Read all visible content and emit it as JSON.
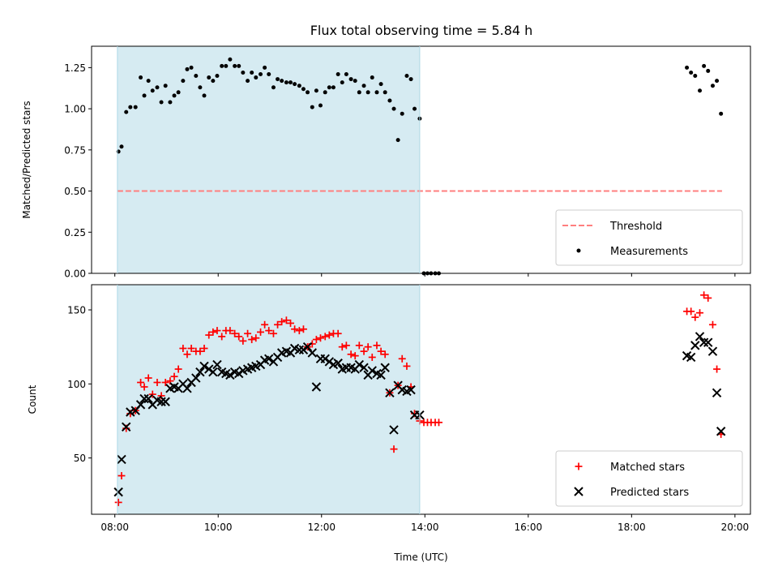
{
  "title": "Flux total observing time = 5.84 h",
  "colors": {
    "highlight": "#add8e6",
    "threshold": "#ff7f7f",
    "measurement": "#000000",
    "matched": "#ff0000",
    "predicted": "#000000"
  },
  "chart_data": [
    {
      "type": "scatter",
      "panel": "top",
      "xlabel": "",
      "ylabel": "Matched/Predicted stars",
      "xlim": [
        7.55,
        20.3
      ],
      "ylim": [
        0,
        1.38
      ],
      "x_ticks": [
        8,
        10,
        12,
        14,
        16,
        18,
        20
      ],
      "x_tick_labels": [
        "08:00",
        "10:00",
        "12:00",
        "14:00",
        "16:00",
        "18:00",
        "20:00"
      ],
      "x_tick_labels_visible": false,
      "y_ticks": [
        0,
        0.25,
        0.5,
        0.75,
        1.0,
        1.25
      ],
      "y_tick_labels": [
        "0.00",
        "0.25",
        "0.50",
        "0.75",
        "1.00",
        "1.25"
      ],
      "highlight_span": [
        8.05,
        13.9
      ],
      "threshold": {
        "name": "Threshold",
        "style": "dashed",
        "y": 0.5,
        "x_range": [
          8.05,
          19.75
        ]
      },
      "series": [
        {
          "name": "Measurements",
          "marker": "dot",
          "x": [
            8.07,
            8.13,
            8.22,
            8.3,
            8.4,
            8.5,
            8.57,
            8.65,
            8.73,
            8.82,
            8.9,
            8.98,
            9.07,
            9.15,
            9.23,
            9.32,
            9.4,
            9.48,
            9.57,
            9.65,
            9.73,
            9.82,
            9.9,
            9.98,
            10.07,
            10.15,
            10.23,
            10.32,
            10.4,
            10.48,
            10.57,
            10.65,
            10.73,
            10.82,
            10.9,
            10.98,
            11.07,
            11.15,
            11.23,
            11.32,
            11.4,
            11.48,
            11.57,
            11.65,
            11.73,
            11.82,
            11.9,
            11.98,
            12.07,
            12.15,
            12.23,
            12.32,
            12.4,
            12.48,
            12.57,
            12.65,
            12.73,
            12.82,
            12.9,
            12.98,
            13.07,
            13.15,
            13.23,
            13.32,
            13.4,
            13.48,
            13.56,
            13.65,
            13.73,
            13.8,
            13.9,
            13.98,
            14.05,
            14.12,
            14.2,
            14.27,
            19.07,
            19.15,
            19.23,
            19.32,
            19.4,
            19.48,
            19.57,
            19.65,
            19.73
          ],
          "y": [
            0.74,
            0.77,
            0.98,
            1.01,
            1.01,
            1.19,
            1.08,
            1.17,
            1.11,
            1.13,
            1.04,
            1.14,
            1.04,
            1.08,
            1.1,
            1.17,
            1.24,
            1.25,
            1.2,
            1.13,
            1.08,
            1.19,
            1.17,
            1.2,
            1.26,
            1.26,
            1.3,
            1.26,
            1.26,
            1.22,
            1.17,
            1.22,
            1.19,
            1.21,
            1.25,
            1.21,
            1.13,
            1.18,
            1.17,
            1.16,
            1.16,
            1.15,
            1.14,
            1.12,
            1.1,
            1.01,
            1.11,
            1.02,
            1.1,
            1.13,
            1.13,
            1.21,
            1.16,
            1.21,
            1.18,
            1.17,
            1.1,
            1.14,
            1.1,
            1.19,
            1.1,
            1.15,
            1.1,
            1.05,
            1.0,
            0.81,
            0.97,
            1.2,
            1.18,
            1.0,
            0.94,
            0.0,
            0.0,
            0.0,
            0.0,
            0.0,
            1.25,
            1.22,
            1.2,
            1.11,
            1.26,
            1.23,
            1.14,
            1.17,
            0.97
          ]
        }
      ],
      "legend": {
        "position": "lower-right",
        "entries": [
          "Threshold",
          "Measurements"
        ]
      }
    },
    {
      "type": "scatter",
      "panel": "bottom",
      "xlabel": "Time (UTC)",
      "ylabel": "Count",
      "xlim": [
        7.55,
        20.3
      ],
      "ylim": [
        12,
        167
      ],
      "x_ticks": [
        8,
        10,
        12,
        14,
        16,
        18,
        20
      ],
      "x_tick_labels": [
        "08:00",
        "10:00",
        "12:00",
        "14:00",
        "16:00",
        "18:00",
        "20:00"
      ],
      "y_ticks": [
        50,
        100,
        150
      ],
      "y_tick_labels": [
        "50",
        "100",
        "150"
      ],
      "highlight_span": [
        8.05,
        13.9
      ],
      "series": [
        {
          "name": "Matched stars",
          "marker": "plus",
          "x": [
            8.07,
            8.13,
            8.22,
            8.3,
            8.4,
            8.5,
            8.57,
            8.65,
            8.73,
            8.82,
            8.9,
            8.98,
            9.07,
            9.15,
            9.23,
            9.32,
            9.4,
            9.48,
            9.57,
            9.65,
            9.73,
            9.82,
            9.9,
            9.98,
            10.07,
            10.15,
            10.23,
            10.32,
            10.4,
            10.48,
            10.57,
            10.65,
            10.73,
            10.82,
            10.9,
            10.98,
            11.07,
            11.15,
            11.23,
            11.32,
            11.4,
            11.48,
            11.57,
            11.65,
            11.73,
            11.82,
            11.9,
            11.98,
            12.07,
            12.15,
            12.23,
            12.32,
            12.4,
            12.48,
            12.57,
            12.65,
            12.73,
            12.82,
            12.9,
            12.98,
            13.07,
            13.15,
            13.23,
            13.32,
            13.4,
            13.48,
            13.56,
            13.65,
            13.73,
            13.8,
            13.9,
            13.98,
            14.05,
            14.12,
            14.2,
            14.27,
            19.07,
            19.15,
            19.23,
            19.32,
            19.4,
            19.48,
            19.57,
            19.65,
            19.73
          ],
          "y": [
            20,
            38,
            70,
            80,
            82,
            101,
            98,
            104,
            93,
            101,
            92,
            101,
            102,
            105,
            110,
            124,
            120,
            124,
            122,
            122,
            124,
            133,
            135,
            136,
            132,
            136,
            136,
            134,
            132,
            129,
            134,
            130,
            131,
            135,
            140,
            136,
            134,
            140,
            142,
            143,
            141,
            137,
            136,
            137,
            125,
            127,
            130,
            131,
            132,
            133,
            134,
            134,
            125,
            126,
            120,
            119,
            126,
            122,
            125,
            118,
            126,
            122,
            120,
            94,
            56,
            99,
            117,
            112,
            98,
            80,
            75,
            74,
            74,
            74,
            74,
            74,
            149,
            149,
            145,
            148,
            160,
            158,
            140,
            110,
            66
          ]
        },
        {
          "name": "Predicted stars",
          "marker": "x",
          "x": [
            8.07,
            8.13,
            8.22,
            8.3,
            8.4,
            8.5,
            8.57,
            8.65,
            8.73,
            8.82,
            8.9,
            8.98,
            9.07,
            9.15,
            9.23,
            9.32,
            9.4,
            9.48,
            9.57,
            9.65,
            9.73,
            9.82,
            9.9,
            9.98,
            10.07,
            10.15,
            10.23,
            10.32,
            10.4,
            10.48,
            10.57,
            10.65,
            10.73,
            10.82,
            10.9,
            10.98,
            11.07,
            11.15,
            11.23,
            11.32,
            11.4,
            11.48,
            11.57,
            11.65,
            11.73,
            11.82,
            11.9,
            11.98,
            12.07,
            12.15,
            12.23,
            12.32,
            12.4,
            12.48,
            12.57,
            12.65,
            12.73,
            12.82,
            12.9,
            12.98,
            13.07,
            13.15,
            13.23,
            13.32,
            13.4,
            13.48,
            13.56,
            13.65,
            13.73,
            13.8,
            13.9,
            19.07,
            19.15,
            19.23,
            19.32,
            19.4,
            19.48,
            19.57,
            19.65,
            19.73
          ],
          "y": [
            27,
            49,
            71,
            81,
            82,
            86,
            90,
            90,
            86,
            89,
            88,
            88,
            97,
            98,
            97,
            100,
            97,
            101,
            104,
            108,
            112,
            110,
            108,
            113,
            108,
            107,
            106,
            108,
            107,
            109,
            110,
            111,
            112,
            113,
            116,
            117,
            115,
            118,
            121,
            122,
            121,
            124,
            123,
            123,
            125,
            121,
            98,
            117,
            117,
            115,
            113,
            114,
            110,
            111,
            111,
            110,
            113,
            111,
            106,
            109,
            107,
            106,
            111,
            94,
            69,
            99,
            96,
            95,
            96,
            79,
            79,
            119,
            118,
            126,
            132,
            128,
            128,
            122,
            94,
            68
          ]
        }
      ],
      "legend": {
        "position": "lower-right",
        "entries": [
          "Matched stars",
          "Predicted stars"
        ]
      }
    }
  ]
}
